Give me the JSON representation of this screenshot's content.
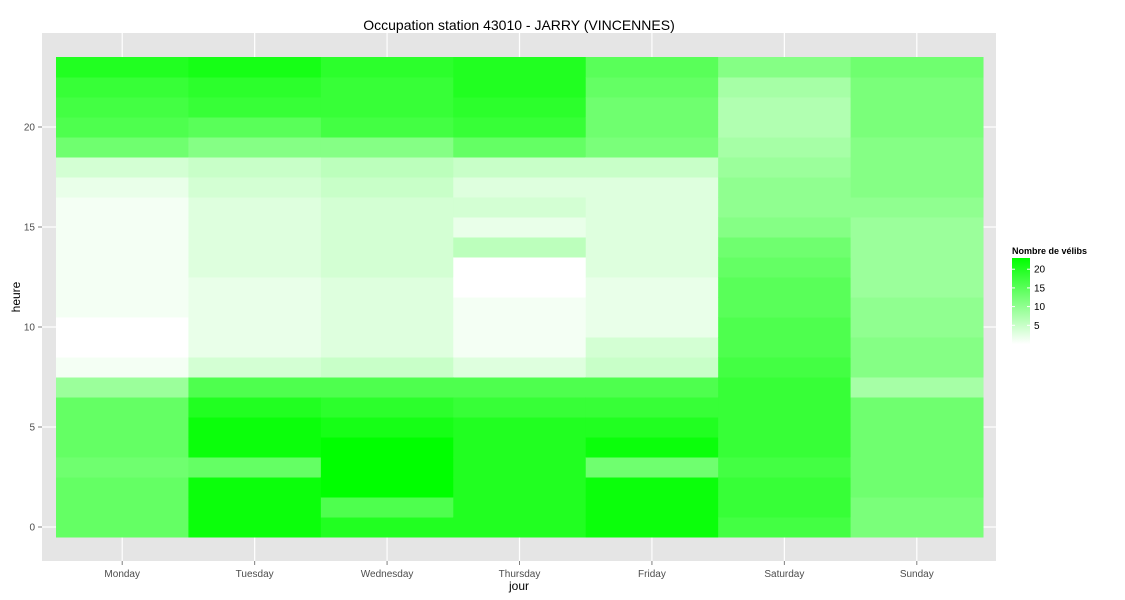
{
  "chart_data": {
    "type": "heatmap",
    "title": "Occupation station 43010 - JARRY (VINCENNES)",
    "xlabel": "jour",
    "ylabel": "heure",
    "x_categories": [
      "Monday",
      "Tuesday",
      "Wednesday",
      "Thursday",
      "Friday",
      "Saturday",
      "Sunday"
    ],
    "y_values": [
      0,
      1,
      2,
      3,
      4,
      5,
      6,
      7,
      8,
      9,
      10,
      11,
      12,
      13,
      14,
      15,
      16,
      17,
      18,
      19,
      20,
      21,
      22,
      23
    ],
    "y_ticks": [
      0,
      5,
      10,
      15,
      20
    ],
    "ylim": [
      -0.5,
      23.5
    ],
    "values_by_day": [
      [
        14,
        14,
        14,
        13,
        14,
        14,
        14,
        9,
        1,
        0,
        0,
        1,
        1,
        1,
        1,
        1,
        1,
        2,
        4,
        13,
        16,
        17,
        18,
        20
      ],
      [
        22,
        22,
        22,
        14,
        22,
        22,
        20,
        16,
        4,
        2,
        2,
        2,
        2,
        3,
        3,
        3,
        3,
        4,
        5,
        11,
        15,
        18,
        19,
        21
      ],
      [
        20,
        16,
        23,
        23,
        23,
        21,
        19,
        16,
        5,
        3,
        3,
        3,
        3,
        4,
        4,
        4,
        4,
        5,
        6,
        11,
        17,
        18,
        18,
        19
      ],
      [
        20,
        20,
        20,
        20,
        20,
        20,
        18,
        16,
        3,
        1,
        1,
        1,
        0,
        0,
        6,
        2,
        4,
        3,
        5,
        14,
        18,
        19,
        20,
        20
      ],
      [
        22,
        22,
        22,
        13,
        22,
        20,
        18,
        16,
        5,
        4,
        2,
        2,
        2,
        3,
        3,
        3,
        3,
        3,
        5,
        12,
        13,
        13,
        14,
        15
      ],
      [
        17,
        18,
        18,
        17,
        18,
        18,
        18,
        18,
        17,
        16,
        16,
        15,
        15,
        14,
        13,
        11,
        10,
        10,
        9,
        8,
        7,
        7,
        8,
        11
      ],
      [
        12,
        12,
        13,
        13,
        13,
        13,
        13,
        8,
        11,
        11,
        10,
        10,
        9,
        9,
        9,
        9,
        10,
        11,
        11,
        11,
        12,
        12,
        12,
        13
      ]
    ],
    "legend": {
      "title": "Nombre de vélibs",
      "ticks": [
        5,
        10,
        15,
        20
      ],
      "range": [
        0,
        23
      ],
      "color_low": "#ffffff",
      "color_high": "#00ff00",
      "placement": "right"
    },
    "panel_background": "#e5e5e5",
    "grid": true
  }
}
